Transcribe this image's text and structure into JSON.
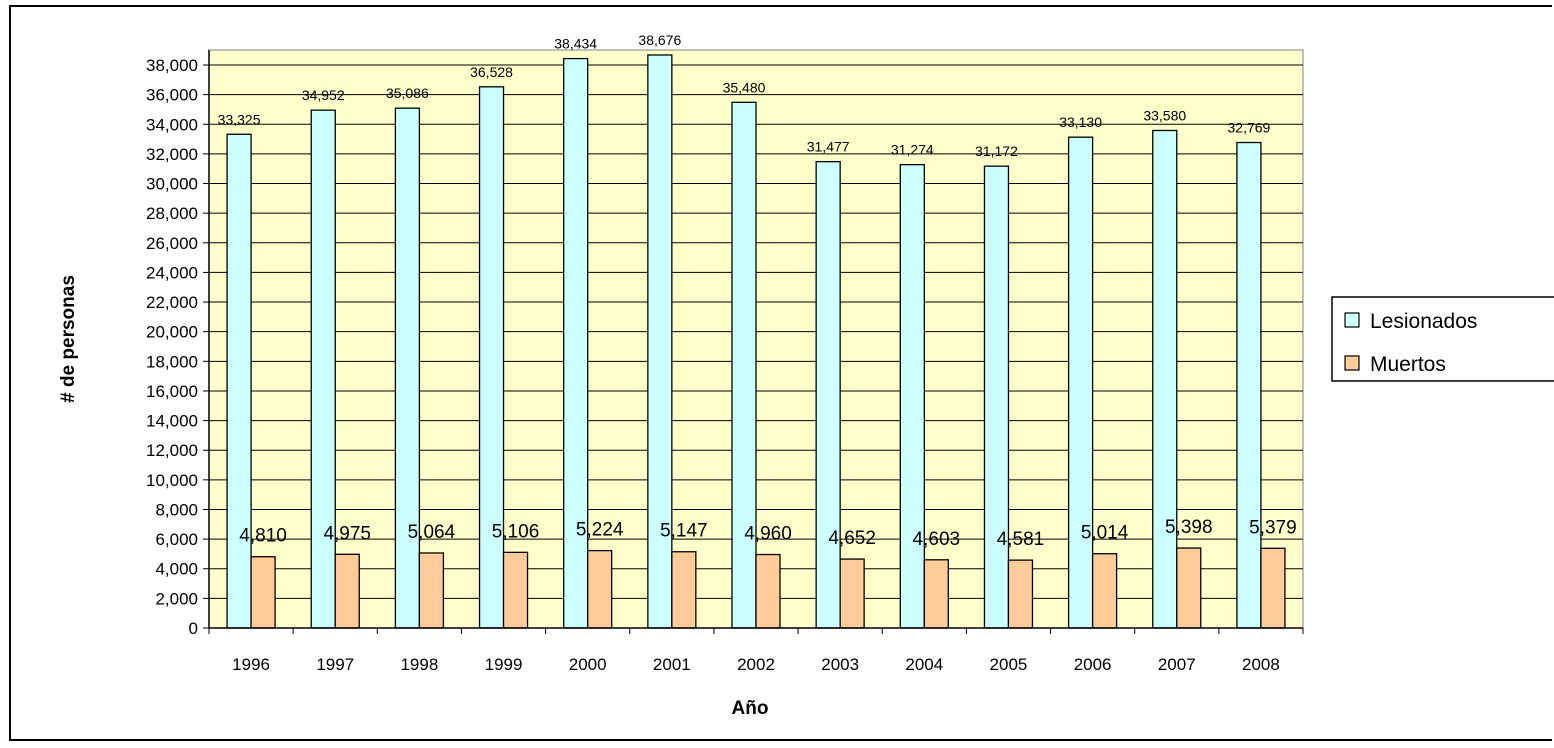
{
  "chart_data": {
    "type": "bar",
    "title": "",
    "xlabel": "Año",
    "ylabel": "# de personas",
    "ylim": [
      0,
      38000
    ],
    "ytick_step": 2000,
    "categories": [
      "1996",
      "1997",
      "1998",
      "1999",
      "2000",
      "2001",
      "2002",
      "2003",
      "2004",
      "2005",
      "2006",
      "2007",
      "2008"
    ],
    "series": [
      {
        "name": "Lesionados",
        "color": "#CCFFFF",
        "values": [
          33325,
          34952,
          35086,
          36528,
          38434,
          38676,
          35480,
          31477,
          31274,
          31172,
          33130,
          33580,
          32769
        ],
        "labels": [
          "33,325",
          "34,952",
          "35,086",
          "36,528",
          "38,434",
          "38,676",
          "35,480",
          "31,477",
          "31,274",
          "31,172",
          "33,130",
          "33,580",
          "32,769"
        ]
      },
      {
        "name": "Muertos",
        "color": "#FFCC99",
        "values": [
          4810,
          4975,
          5064,
          5106,
          5224,
          5147,
          4960,
          4652,
          4603,
          4581,
          5014,
          5398,
          5379
        ],
        "labels": [
          "4,810",
          "4,975",
          "5,064",
          "5,106",
          "5,224",
          "5,147",
          "4,960",
          "4,652",
          "4,603",
          "4,581",
          "5,014",
          "5,398",
          "5,379"
        ]
      }
    ],
    "plot_background": "#FFFFCC",
    "grid": true,
    "legend_position": "right"
  }
}
